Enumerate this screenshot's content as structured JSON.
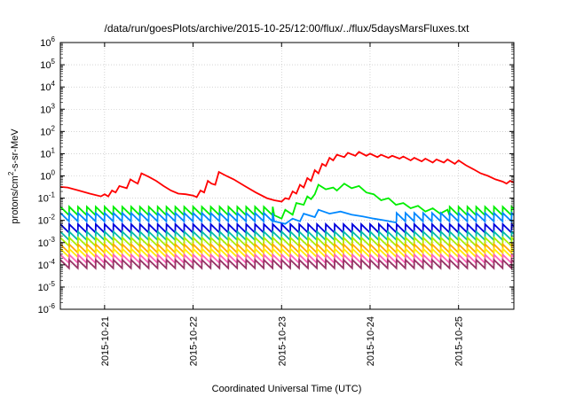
{
  "chart_data": {
    "type": "line",
    "title": "/data/run/goesPlots/archive/2015-10-25/12:00/flux/../flux/5daysMarsFluxes.txt",
    "xlabel": "Coordinated Universal Time (UTC)",
    "ylabel": {
      "base": "protons/cm",
      "sup": "2",
      "rest": "-s-sr-MeV"
    },
    "y_scale": "log",
    "ylim": [
      1e-06,
      1000000.0
    ],
    "y_ticks": [
      {
        "value": 1e-06,
        "base": "10",
        "exp": "-6"
      },
      {
        "value": 1e-05,
        "base": "10",
        "exp": "-5"
      },
      {
        "value": 0.0001,
        "base": "10",
        "exp": "-4"
      },
      {
        "value": 0.001,
        "base": "10",
        "exp": "-3"
      },
      {
        "value": 0.01,
        "base": "10",
        "exp": "-2"
      },
      {
        "value": 0.1,
        "base": "10",
        "exp": "-1"
      },
      {
        "value": 1,
        "base": "10",
        "exp": "0"
      },
      {
        "value": 10,
        "base": "10",
        "exp": "1"
      },
      {
        "value": 100,
        "base": "10",
        "exp": "2"
      },
      {
        "value": 1000,
        "base": "10",
        "exp": "3"
      },
      {
        "value": 10000,
        "base": "10",
        "exp": "4"
      },
      {
        "value": 100000,
        "base": "10",
        "exp": "5"
      },
      {
        "value": 1000000,
        "base": "10",
        "exp": "6"
      }
    ],
    "xlim": [
      "2015-10-20 12:00",
      "2015-10-25 15:00"
    ],
    "x_ticks": [
      "2015-10-21",
      "2015-10-22",
      "2015-10-23",
      "2015-10-24",
      "2015-10-25"
    ],
    "grid": true,
    "series": [
      {
        "color": "#ff0000",
        "points": [
          [
            "2015-10-20 12:00",
            0.32
          ],
          [
            "2015-10-20 14:00",
            0.3
          ],
          [
            "2015-10-20 17:00",
            0.22
          ],
          [
            "2015-10-20 20:00",
            0.16
          ],
          [
            "2015-10-20 23:00",
            0.12
          ],
          [
            "2015-10-21 00:00",
            0.15
          ],
          [
            "2015-10-21 01:00",
            0.12
          ],
          [
            "2015-10-21 02:00",
            0.22
          ],
          [
            "2015-10-21 03:00",
            0.18
          ],
          [
            "2015-10-21 04:00",
            0.35
          ],
          [
            "2015-10-21 06:00",
            0.28
          ],
          [
            "2015-10-21 07:00",
            0.7
          ],
          [
            "2015-10-21 08:00",
            0.55
          ],
          [
            "2015-10-21 09:00",
            0.45
          ],
          [
            "2015-10-21 10:00",
            1.3
          ],
          [
            "2015-10-21 12:00",
            0.9
          ],
          [
            "2015-10-21 14:00",
            0.6
          ],
          [
            "2015-10-21 16:00",
            0.35
          ],
          [
            "2015-10-21 18:00",
            0.22
          ],
          [
            "2015-10-21 20:00",
            0.16
          ],
          [
            "2015-10-21 22:00",
            0.15
          ],
          [
            "2015-10-22 00:00",
            0.13
          ],
          [
            "2015-10-22 01:00",
            0.11
          ],
          [
            "2015-10-22 02:00",
            0.22
          ],
          [
            "2015-10-22 03:00",
            0.18
          ],
          [
            "2015-10-22 04:00",
            0.6
          ],
          [
            "2015-10-22 05:00",
            0.45
          ],
          [
            "2015-10-22 06:00",
            0.4
          ],
          [
            "2015-10-22 07:00",
            1.5
          ],
          [
            "2015-10-22 09:00",
            1.0
          ],
          [
            "2015-10-22 11:00",
            0.7
          ],
          [
            "2015-10-22 14:00",
            0.35
          ],
          [
            "2015-10-22 17:00",
            0.18
          ],
          [
            "2015-10-22 20:00",
            0.1
          ],
          [
            "2015-10-22 22:00",
            0.08
          ],
          [
            "2015-10-23 00:00",
            0.07
          ],
          [
            "2015-10-23 01:00",
            0.1
          ],
          [
            "2015-10-23 02:00",
            0.09
          ],
          [
            "2015-10-23 03:00",
            0.2
          ],
          [
            "2015-10-23 04:00",
            0.16
          ],
          [
            "2015-10-23 05:00",
            0.4
          ],
          [
            "2015-10-23 06:00",
            0.3
          ],
          [
            "2015-10-23 07:00",
            0.8
          ],
          [
            "2015-10-23 08:00",
            0.6
          ],
          [
            "2015-10-23 09:00",
            1.8
          ],
          [
            "2015-10-23 10:00",
            1.3
          ],
          [
            "2015-10-23 11:00",
            3.5
          ],
          [
            "2015-10-23 12:00",
            2.8
          ],
          [
            "2015-10-23 13:00",
            6.5
          ],
          [
            "2015-10-23 14:00",
            5.0
          ],
          [
            "2015-10-23 15:00",
            9.0
          ],
          [
            "2015-10-23 17:00",
            7.0
          ],
          [
            "2015-10-23 18:00",
            11.0
          ],
          [
            "2015-10-23 20:00",
            8.0
          ],
          [
            "2015-10-23 21:00",
            12.0
          ],
          [
            "2015-10-23 23:00",
            8.0
          ],
          [
            "2015-10-24 00:00",
            10.0
          ],
          [
            "2015-10-24 02:00",
            7.0
          ],
          [
            "2015-10-24 03:00",
            9.0
          ],
          [
            "2015-10-24 05:00",
            6.5
          ],
          [
            "2015-10-24 06:00",
            8.0
          ],
          [
            "2015-10-24 08:00",
            6.0
          ],
          [
            "2015-10-24 09:00",
            7.5
          ],
          [
            "2015-10-24 11:00",
            5.0
          ],
          [
            "2015-10-24 12:00",
            6.5
          ],
          [
            "2015-10-24 14:00",
            4.5
          ],
          [
            "2015-10-24 15:00",
            6.0
          ],
          [
            "2015-10-24 17:00",
            4.0
          ],
          [
            "2015-10-24 18:00",
            5.5
          ],
          [
            "2015-10-24 20:00",
            4.0
          ],
          [
            "2015-10-24 21:00",
            5.5
          ],
          [
            "2015-10-24 23:00",
            3.5
          ],
          [
            "2015-10-25 00:00",
            5.0
          ],
          [
            "2015-10-25 02:00",
            3.0
          ],
          [
            "2015-10-25 04:00",
            2.0
          ],
          [
            "2015-10-25 06:00",
            1.3
          ],
          [
            "2015-10-25 08:00",
            1.0
          ],
          [
            "2015-10-25 10:00",
            0.7
          ],
          [
            "2015-10-25 12:00",
            0.55
          ],
          [
            "2015-10-25 13:00",
            0.45
          ],
          [
            "2015-10-25 14:00",
            0.6
          ],
          [
            "2015-10-25 15:00",
            0.5
          ]
        ]
      },
      {
        "color": "#00ee00",
        "base": 0.017,
        "sawtooth": true,
        "points": [
          [
            "2015-10-22 22:00",
            0.017
          ],
          [
            "2015-10-23 00:00",
            0.012
          ],
          [
            "2015-10-23 01:00",
            0.03
          ],
          [
            "2015-10-23 03:00",
            0.018
          ],
          [
            "2015-10-23 04:00",
            0.06
          ],
          [
            "2015-10-23 06:00",
            0.05
          ],
          [
            "2015-10-23 07:00",
            0.12
          ],
          [
            "2015-10-23 08:00",
            0.09
          ],
          [
            "2015-10-23 09:00",
            0.15
          ],
          [
            "2015-10-23 10:00",
            0.4
          ],
          [
            "2015-10-23 12:00",
            0.25
          ],
          [
            "2015-10-23 14:00",
            0.3
          ],
          [
            "2015-10-23 15:00",
            0.22
          ],
          [
            "2015-10-23 17:00",
            0.45
          ],
          [
            "2015-10-23 19:00",
            0.28
          ],
          [
            "2015-10-23 21:00",
            0.35
          ],
          [
            "2015-10-23 23:00",
            0.18
          ],
          [
            "2015-10-24 01:00",
            0.15
          ],
          [
            "2015-10-24 03:00",
            0.08
          ],
          [
            "2015-10-24 05:00",
            0.1
          ],
          [
            "2015-10-24 07:00",
            0.05
          ],
          [
            "2015-10-24 09:00",
            0.06
          ],
          [
            "2015-10-24 11:00",
            0.035
          ],
          [
            "2015-10-24 13:00",
            0.045
          ],
          [
            "2015-10-24 15:00",
            0.025
          ],
          [
            "2015-10-24 17:00",
            0.035
          ],
          [
            "2015-10-24 19:00",
            0.02
          ],
          [
            "2015-10-24 21:00",
            0.03
          ]
        ]
      },
      {
        "color": "#0088ff",
        "base": 0.009,
        "sawtooth": true,
        "points": [
          [
            "2015-10-22 22:00",
            0.009
          ],
          [
            "2015-10-23 01:00",
            0.007
          ],
          [
            "2015-10-23 03:00",
            0.012
          ],
          [
            "2015-10-23 05:00",
            0.009
          ],
          [
            "2015-10-23 06:00",
            0.02
          ],
          [
            "2015-10-23 09:00",
            0.014
          ],
          [
            "2015-10-23 10:00",
            0.03
          ],
          [
            "2015-10-23 13:00",
            0.02
          ],
          [
            "2015-10-23 16:00",
            0.025
          ],
          [
            "2015-10-23 19:00",
            0.018
          ],
          [
            "2015-10-23 22:00",
            0.015
          ],
          [
            "2015-10-24 01:00",
            0.012
          ],
          [
            "2015-10-24 04:00",
            0.01
          ],
          [
            "2015-10-24 07:00",
            0.008
          ]
        ]
      },
      {
        "color": "#0000dd",
        "base": 0.0028,
        "sawtooth": true
      },
      {
        "color": "#00bbaa",
        "base": 0.0013,
        "sawtooth": true
      },
      {
        "color": "#aaee00",
        "base": 0.0007,
        "sawtooth": true
      },
      {
        "color": "#ffaa00",
        "base": 0.00035,
        "sawtooth": true
      },
      {
        "color": "#ffee00",
        "base": 0.00022,
        "sawtooth": true
      },
      {
        "color": "#ff66bb",
        "base": 0.00012,
        "sawtooth": true
      },
      {
        "color": "#993366",
        "base": 7e-05,
        "sawtooth": true
      }
    ]
  }
}
